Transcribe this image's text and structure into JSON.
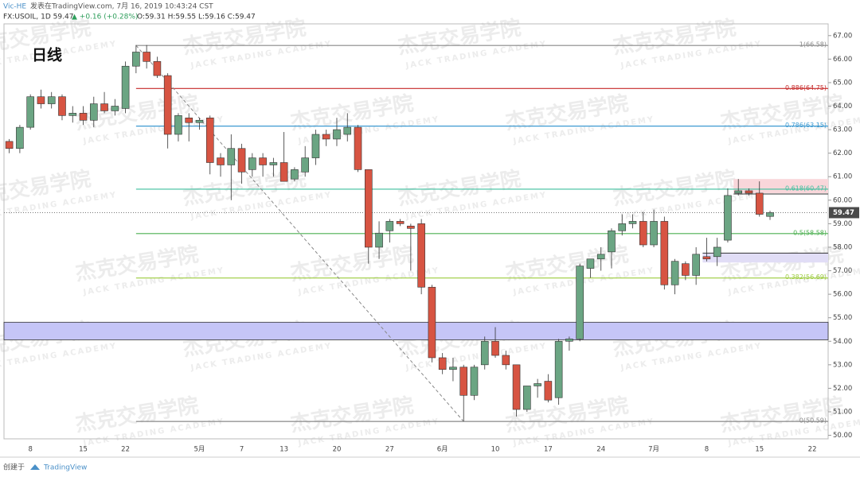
{
  "header": {
    "author": "Vic-HE",
    "published": "发表在TradingView.com, 7月 16, 2019 10:43:24 CST",
    "symbol": "FX:USOIL, 1D 59.47",
    "change": "▲ +0.16 (+0.28%)",
    "ohlc": "O:59.31 H:59.55 L:59.16 C:59.47"
  },
  "footer": {
    "created": "创建于",
    "brand": "TradingView"
  },
  "watermark": {
    "cn": "杰克交易学院",
    "en": "JACK TRADING ACADEMY"
  },
  "chart_data": {
    "type": "candlestick",
    "title": "日线",
    "categories": [
      null,
      null,
      "8",
      null,
      null,
      null,
      null,
      "15",
      null,
      null,
      null,
      "22",
      null,
      null,
      null,
      null,
      null,
      null,
      "5月",
      null,
      null,
      null,
      "7",
      null,
      null,
      null,
      "13",
      null,
      null,
      null,
      null,
      "20",
      null,
      null,
      null,
      null,
      "27",
      null,
      null,
      null,
      null,
      "6月",
      null,
      null,
      null,
      null,
      "10",
      null,
      null,
      null,
      null,
      "17",
      null,
      null,
      null,
      null,
      "24",
      null,
      null,
      null,
      null,
      "7月",
      null,
      null,
      null,
      null,
      "8",
      null,
      null,
      null,
      null,
      "15",
      null,
      null,
      null,
      null,
      "22",
      null
    ],
    "open": [
      62.5,
      62.2,
      63.1,
      64.4,
      64.1,
      64.4,
      63.6,
      63.7,
      63.4,
      64.1,
      63.8,
      63.9,
      65.7,
      66.3,
      65.9,
      65.3,
      62.8,
      63.5,
      63.3,
      63.5,
      61.8,
      61.5,
      62.2,
      61.3,
      61.8,
      61.5,
      61.6,
      60.9,
      61.2,
      61.8,
      62.8,
      62.6,
      62.8,
      63.1,
      61.3,
      58.0,
      58.7,
      59.1,
      58.9,
      59.0,
      56.3,
      53.3,
      52.8,
      52.9,
      51.7,
      53.0,
      54.0,
      53.4,
      53.0,
      51.1,
      52.1,
      52.3,
      51.6,
      54.0,
      54.1,
      57.1,
      57.5,
      57.8,
      58.7,
      59.0,
      59.1,
      58.1,
      59.1,
      56.4,
      57.3,
      56.8,
      57.6,
      57.6,
      58.3,
      60.3,
      60.4,
      60.3,
      59.31,
      null,
      null,
      null,
      null,
      null
    ],
    "high": [
      62.6,
      63.2,
      64.5,
      64.7,
      64.6,
      64.5,
      64.0,
      64.0,
      64.4,
      64.6,
      64.3,
      65.9,
      66.6,
      66.6,
      66.1,
      65.4,
      63.7,
      63.7,
      63.5,
      63.6,
      62.0,
      62.8,
      62.4,
      62.0,
      62.0,
      61.8,
      62.9,
      61.4,
      62.3,
      63.0,
      63.0,
      63.5,
      63.7,
      63.2,
      61.3,
      59.1,
      59.2,
      59.2,
      59.0,
      59.2,
      56.4,
      53.5,
      53.3,
      53.0,
      53.0,
      54.2,
      54.6,
      53.6,
      53.0,
      52.1,
      52.4,
      52.6,
      54.1,
      54.2,
      57.3,
      57.5,
      58.0,
      58.8,
      59.4,
      59.4,
      59.5,
      59.6,
      59.3,
      57.5,
      57.4,
      58.0,
      58.4,
      58.4,
      60.5,
      60.9,
      60.5,
      60.8,
      59.55,
      null,
      null,
      null,
      null,
      null
    ],
    "low": [
      62.0,
      62.0,
      63.0,
      63.9,
      63.9,
      63.4,
      63.3,
      63.2,
      63.1,
      63.7,
      63.6,
      63.7,
      65.4,
      65.6,
      65.2,
      62.2,
      62.5,
      62.5,
      63.0,
      61.1,
      61.0,
      60.0,
      60.7,
      61.0,
      61.0,
      61.0,
      60.8,
      60.8,
      61.0,
      61.5,
      62.3,
      62.3,
      62.5,
      61.2,
      57.3,
      57.5,
      58.2,
      58.9,
      57.0,
      56.0,
      53.1,
      52.6,
      52.3,
      50.6,
      51.5,
      52.8,
      53.3,
      52.8,
      50.8,
      51.0,
      51.6,
      51.4,
      51.3,
      53.6,
      54.0,
      56.7,
      57.0,
      57.1,
      58.5,
      58.8,
      58.0,
      58.0,
      56.2,
      56.0,
      56.6,
      56.4,
      57.4,
      57.2,
      58.2,
      60.2,
      60.2,
      59.3,
      59.16,
      null,
      null,
      null,
      null,
      null
    ],
    "close": [
      62.2,
      63.1,
      64.4,
      64.1,
      64.4,
      63.6,
      63.7,
      63.4,
      64.1,
      63.8,
      64.0,
      65.7,
      66.3,
      65.9,
      65.3,
      62.8,
      63.6,
      63.3,
      63.4,
      61.6,
      61.5,
      62.2,
      61.2,
      61.8,
      61.5,
      61.6,
      60.8,
      61.3,
      61.8,
      62.8,
      62.6,
      63.0,
      63.1,
      61.3,
      58.0,
      58.6,
      59.1,
      59.0,
      58.8,
      56.3,
      53.3,
      52.8,
      52.9,
      51.7,
      52.9,
      54.0,
      53.4,
      53.0,
      51.1,
      52.1,
      52.2,
      51.5,
      54.0,
      54.1,
      57.2,
      57.5,
      57.7,
      58.7,
      59.0,
      59.1,
      58.1,
      59.1,
      56.4,
      57.4,
      56.8,
      57.7,
      57.5,
      58.0,
      60.2,
      60.4,
      60.3,
      59.4,
      59.47,
      null,
      null,
      null,
      null,
      null
    ],
    "up_color": "#6ba583",
    "down_color": "#d75442",
    "ylim": [
      49.85,
      67.5
    ],
    "yticks": [
      {
        "value": 50,
        "label": "50.00"
      },
      {
        "value": 51,
        "label": "51.00"
      },
      {
        "value": 52,
        "label": "52.00"
      },
      {
        "value": 53,
        "label": "53.00"
      },
      {
        "value": 54,
        "label": "54.00"
      },
      {
        "value": 55,
        "label": "55.00"
      },
      {
        "value": 56,
        "label": "56.00"
      },
      {
        "value": 57,
        "label": "57.00"
      },
      {
        "value": 58,
        "label": "58.00"
      },
      {
        "value": 59,
        "label": "59.00"
      },
      {
        "value": 60,
        "label": "60.00"
      },
      {
        "value": 61,
        "label": "61.00"
      },
      {
        "value": 62,
        "label": "62.00"
      },
      {
        "value": 63,
        "label": "63.00"
      },
      {
        "value": 64,
        "label": "64.00"
      },
      {
        "value": 65,
        "label": "65.00"
      },
      {
        "value": 66,
        "label": "66.00"
      },
      {
        "value": 67,
        "label": "67.00"
      }
    ],
    "last_price": 59.47,
    "fib_levels": [
      {
        "label": "1(66.58)",
        "value": 66.58,
        "color": "#888888"
      },
      {
        "label": "0.886(64.75)",
        "value": 64.75,
        "color": "#c62828"
      },
      {
        "label": "0.786(63.15)",
        "value": 63.15,
        "color": "#3d9ad1"
      },
      {
        "label": "0.618(60.47)",
        "value": 60.47,
        "color": "#3dbf9e"
      },
      {
        "label": "0.5(58.58)",
        "value": 58.58,
        "color": "#4caf50"
      },
      {
        "label": "0.382(56.69)",
        "value": 56.69,
        "color": "#9ccc3c"
      },
      {
        "label": "0(50.59)",
        "value": 50.59,
        "color": "#888888"
      }
    ],
    "zones": [
      {
        "low": 54.06,
        "high": 54.81,
        "color": "#c5c5f7"
      },
      {
        "low": 60.3,
        "high": 60.9,
        "color": "#f9d6da"
      },
      {
        "low": 57.35,
        "high": 57.75,
        "color": "#e1ddf6"
      }
    ]
  }
}
